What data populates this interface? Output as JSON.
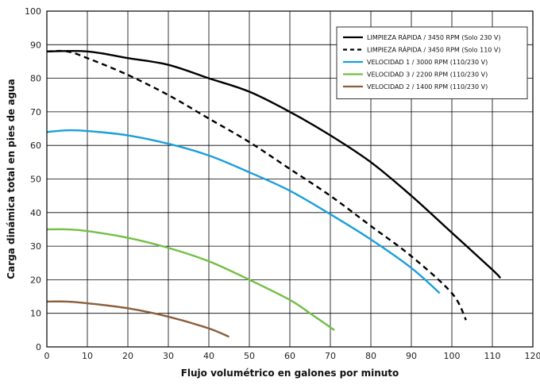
{
  "chart_data": {
    "type": "line",
    "title": "",
    "xlabel": "Flujo volumétrico en galones por minuto",
    "ylabel": "Carga dinámica total en pies de agua",
    "xlim": [
      0,
      120
    ],
    "ylim": [
      0,
      100
    ],
    "xticks": [
      0,
      10,
      20,
      30,
      40,
      50,
      60,
      70,
      80,
      90,
      100,
      110,
      120
    ],
    "yticks": [
      0,
      10,
      20,
      30,
      40,
      50,
      60,
      70,
      80,
      90,
      100
    ],
    "grid": true,
    "legend_position": "top-right",
    "series": [
      {
        "name": "LIMPIEZA RÁPIDA / 3450 RPM (Solo 230 V)",
        "color": "#000000",
        "dash": "solid",
        "x": [
          0,
          10,
          20,
          30,
          40,
          50,
          60,
          70,
          80,
          90,
          100,
          110,
          112
        ],
        "y": [
          88,
          88,
          86,
          84,
          80,
          76,
          70,
          63,
          55,
          45,
          34,
          23,
          20.5
        ]
      },
      {
        "name": "LIMPIEZA RÁPIDA / 3450 RPM (Solo 110 V)",
        "color": "#000000",
        "dash": "dashed",
        "x": [
          0,
          5,
          10,
          20,
          30,
          40,
          50,
          60,
          70,
          80,
          90,
          100,
          103.5
        ],
        "y": [
          88,
          88,
          86,
          81,
          75,
          68,
          61,
          53,
          45,
          36,
          27,
          16,
          8
        ]
      },
      {
        "name": "VELOCIDAD 1 / 3000 RPM (110/230 V)",
        "color": "#1a9fdb",
        "dash": "solid",
        "x": [
          0,
          5,
          10,
          20,
          30,
          40,
          50,
          60,
          70,
          80,
          90,
          97
        ],
        "y": [
          64,
          64.5,
          64.3,
          63,
          60.5,
          57,
          52,
          46.5,
          39.5,
          32,
          23.5,
          16
        ]
      },
      {
        "name": "VELOCIDAD 3 / 2200 RPM (110/230 V)",
        "color": "#72bf44",
        "dash": "solid",
        "x": [
          0,
          5,
          10,
          20,
          30,
          40,
          50,
          60,
          65,
          71
        ],
        "y": [
          35,
          35,
          34.5,
          32.5,
          29.5,
          25.5,
          20,
          14,
          10,
          5
        ]
      },
      {
        "name": "VELOCIDAD 2 / 1400 RPM (110/230 V)",
        "color": "#8b5e3c",
        "dash": "solid",
        "x": [
          0,
          5,
          10,
          20,
          30,
          40,
          45
        ],
        "y": [
          13.5,
          13.5,
          13,
          11.5,
          9,
          5.5,
          3
        ]
      }
    ]
  }
}
